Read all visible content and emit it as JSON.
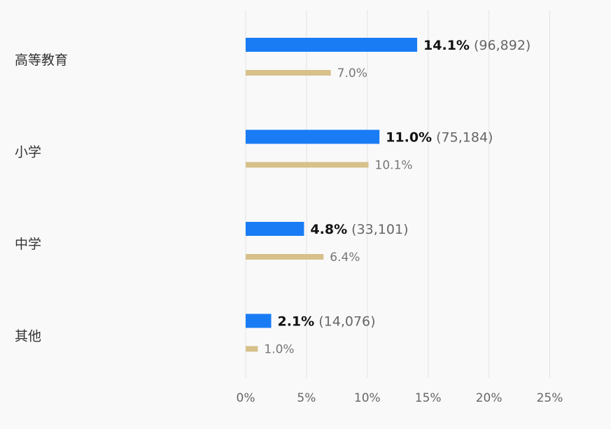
{
  "chart_data": {
    "type": "bar",
    "orientation": "horizontal",
    "categories": [
      "高等教育",
      "小学",
      "中学",
      "其他"
    ],
    "series": [
      {
        "values": [
          14.1,
          11.0,
          4.8,
          2.1
        ],
        "value_labels": [
          "14.1%",
          "11.0%",
          "4.8%",
          "2.1%"
        ],
        "count_labels": [
          "(96,892)",
          "(75,184)",
          "(33,101)",
          "(14,076)"
        ],
        "color": "#1a7cf5"
      },
      {
        "values": [
          7.0,
          10.1,
          6.4,
          1.0
        ],
        "value_labels": [
          "7.0%",
          "10.1%",
          "6.4%",
          "1.0%"
        ],
        "color": "#d7c08a"
      }
    ],
    "x_ticks": [
      "0%",
      "5%",
      "10%",
      "15%",
      "20%",
      "25%"
    ],
    "x_tick_values": [
      0,
      5,
      10,
      15,
      20,
      25
    ],
    "xlim": [
      0,
      25
    ],
    "grid": true,
    "grid_color": "#e4e4e4",
    "legend": "none"
  }
}
